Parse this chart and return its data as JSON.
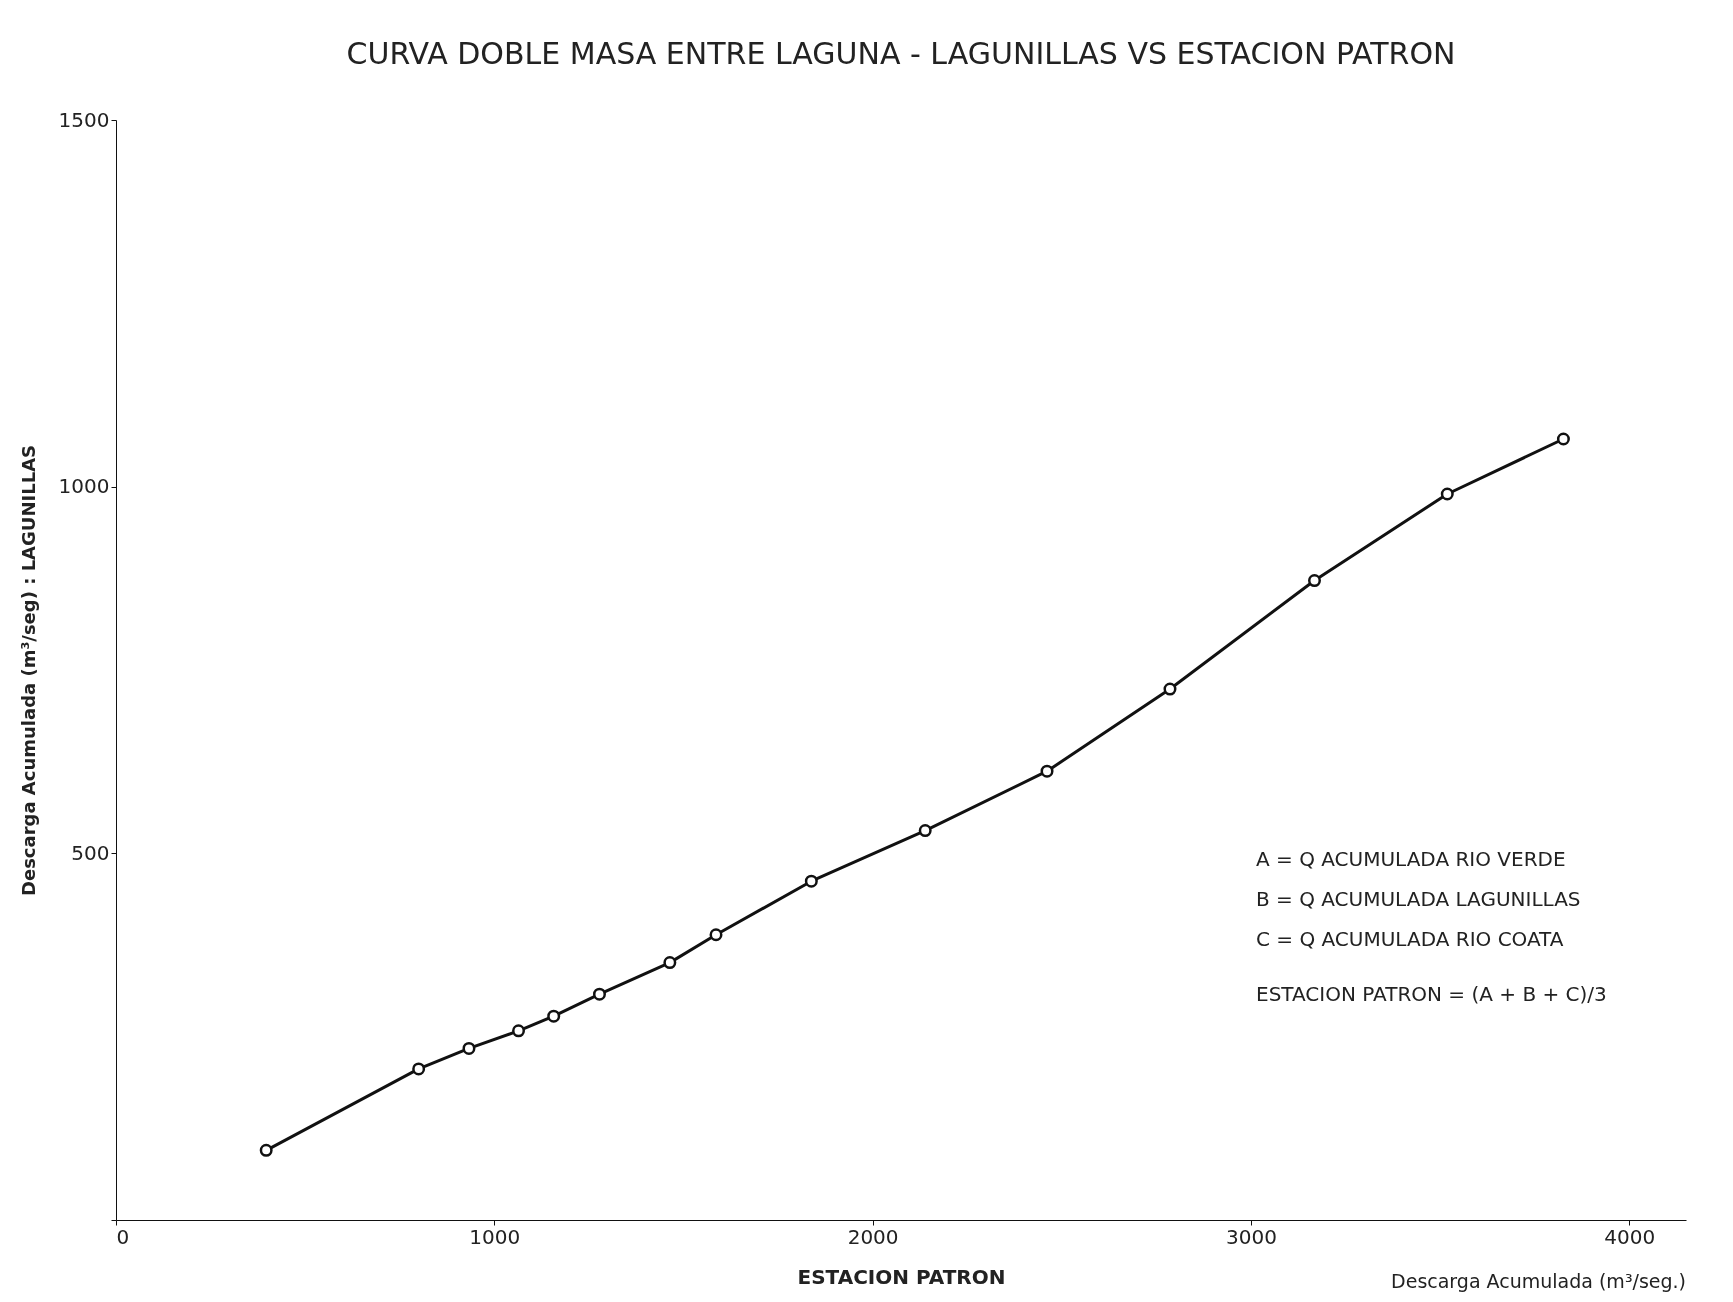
{
  "chart_data": {
    "type": "line",
    "title": "CURVA DOBLE MASA ENTRE LAGUNA - LAGUNILLAS VS ESTACION PATRON",
    "xlabel": "ESTACION PATRON",
    "ylabel": "Descarga Acumulada (m³/seg) : LAGUNILLAS",
    "x": [
      397,
      800,
      933,
      1064,
      1157,
      1278,
      1464,
      1586,
      1838,
      2139,
      2461,
      2786,
      3168,
      3519,
      3826
    ],
    "series": [
      {
        "color": "#111111",
        "values": [
          95,
          206,
          234,
          258,
          278,
          308,
          351,
          389,
          462,
          531,
          612,
          724,
          872,
          990,
          1065
        ]
      }
    ],
    "xlim": [
      0,
      4150
    ],
    "xticks": [
      0,
      1000,
      2000,
      3000,
      4000
    ],
    "ylim": [
      0,
      1500
    ],
    "yticks": [
      {
        "value": 0,
        "label": null
      },
      500,
      1000,
      1500
    ],
    "grid": false,
    "marker": "circle",
    "line_style": "solid",
    "annotations": [
      "A = Q ACUMULADA RIO VERDE",
      "B = Q ACUMULADA LAGUNILLAS",
      "C = Q ACUMULADA RIO COATA",
      "ESTACION PATRON = (A + B + C)/3",
      "Descarga Acumulada (m³/seg.)"
    ]
  }
}
